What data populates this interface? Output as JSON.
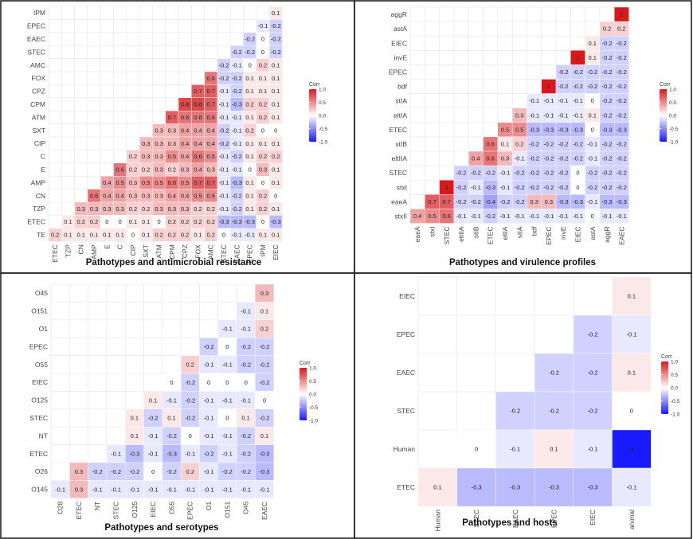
{
  "chart_data": [
    {
      "type": "heatmap",
      "title": "Pathotypes and antimicrobial resistance",
      "rows": [
        "IPM",
        "EPEC",
        "EAEC",
        "STEC",
        "AMC",
        "FOX",
        "CPZ",
        "CPM",
        "ATM",
        "SXT",
        "CIP",
        "C",
        "E",
        "AMP",
        "CN",
        "TZP",
        "ETEC",
        "TE"
      ],
      "cols": [
        "ETEC",
        "TZP",
        "CN",
        "AMP",
        "E",
        "C",
        "CIP",
        "SXT",
        "ATM",
        "CPM",
        "CPZ",
        "FOX",
        "AMC",
        "STEC",
        "EAEC",
        "EPEC",
        "IPM",
        "EIEC"
      ],
      "values": [
        [
          0.1
        ],
        [
          -0.1,
          -0.2
        ],
        [
          -0.2,
          0,
          -0.2
        ],
        [
          -0.2,
          -0.2,
          0,
          -0.2
        ],
        [
          -0.2,
          -0.1,
          0,
          0.2,
          0.1
        ],
        [
          0.6,
          -0.2,
          -0.2,
          0.1,
          0.1,
          0.1
        ],
        [
          0.7,
          0.7,
          -0.1,
          -0.2,
          0.1,
          0.1,
          0.1
        ],
        [
          0.8,
          0.8,
          0.7,
          -0.1,
          -0.3,
          0.2,
          0.2,
          0.1
        ],
        [
          0.7,
          0.6,
          0.6,
          0.6,
          -0.1,
          -0.1,
          0.1,
          0.2,
          0.1
        ],
        [
          0.3,
          0.3,
          0.4,
          0.4,
          0.4,
          -0.2,
          -0.1,
          0.2,
          0,
          0
        ],
        [
          0.3,
          0.3,
          0.3,
          0.4,
          0.4,
          0.4,
          -0.2,
          -0.1,
          0.1,
          0.1,
          0.1
        ],
        [
          0.2,
          0.3,
          0.3,
          0.5,
          0.4,
          0.6,
          0.5,
          -0.1,
          -0.2,
          0.1,
          0.2,
          0.2
        ],
        [
          0.6,
          0.2,
          0.2,
          0.3,
          0.2,
          0.3,
          0.4,
          0.3,
          -0.1,
          -0.1,
          0,
          0.3,
          0.1
        ],
        [
          0.4,
          0.5,
          0.3,
          0.5,
          0.5,
          0.6,
          0.5,
          0.7,
          0.7,
          -0.1,
          -0.3,
          0.1,
          0,
          0.1
        ],
        [
          0.6,
          0.4,
          0.4,
          0.3,
          0.3,
          0.3,
          0.4,
          0.4,
          0.5,
          0.5,
          -0.1,
          -0.2,
          0.1,
          0.2,
          0
        ],
        [
          0.3,
          0.3,
          0.3,
          0.3,
          0.2,
          0.2,
          0.3,
          0.3,
          0.3,
          0.2,
          0.2,
          -0.1,
          -0.2,
          0.1,
          0.2,
          0.1
        ],
        [
          0.1,
          0.2,
          0.2,
          0,
          0,
          0.1,
          0.1,
          0,
          0.2,
          0.2,
          0.2,
          0.2,
          -0.3,
          -0.3,
          -0.3,
          0,
          -0.3
        ],
        [
          0.2,
          0.1,
          0.1,
          0.1,
          0.1,
          0.1,
          0,
          0.1,
          0.2,
          0.2,
          0.2,
          0.1,
          0.2,
          0,
          -0.1,
          -0.1,
          0.1,
          0.1
        ]
      ],
      "legend": {
        "title": "Corr",
        "ticks": [
          "1.0",
          "0.5",
          "0.0",
          "-0.5",
          "-1.0"
        ],
        "range": [
          -1,
          1
        ]
      }
    },
    {
      "type": "heatmap",
      "title": "Pathotypes and virulence profiles",
      "rows": [
        "aggR",
        "astA",
        "EIEC",
        "invE",
        "EPEC",
        "bdf",
        "stIA",
        "eltIA",
        "ETEC",
        "stIB",
        "eltIIA",
        "STEC",
        "stxI",
        "eaeA",
        "stxII"
      ],
      "cols": [
        "eaeA",
        "stxI",
        "STEC",
        "eltIIA",
        "stIB",
        "ETEC",
        "eltIA",
        "stIA",
        "bdf",
        "EPEC",
        "invE",
        "EIEC",
        "astA",
        "aggR",
        "EAEC"
      ],
      "values": [
        [
          1
        ],
        [
          0.2,
          0.2
        ],
        [
          0.1,
          -0.2,
          -0.2
        ],
        [
          1,
          0.1,
          -0.2,
          -0.2
        ],
        [
          -0.2,
          -0.2,
          -0.2,
          -0.2,
          -0.2
        ],
        [
          1,
          -0.2,
          -0.2,
          -0.2,
          -0.2,
          -0.2
        ],
        [
          -0.1,
          -0.1,
          -0.1,
          -0.1,
          0,
          -0.2,
          -0.2
        ],
        [
          0.3,
          -0.1,
          -0.1,
          -0.1,
          -0.1,
          0.1,
          -0.2,
          -0.2
        ],
        [
          0.5,
          0.5,
          -0.3,
          -0.3,
          -0.3,
          -0.3,
          0,
          -0.3,
          -0.3
        ],
        [
          0.6,
          0.1,
          0.2,
          -0.2,
          -0.2,
          -0.2,
          -0.2,
          -0.1,
          -0.2,
          -0.2
        ],
        [
          0.4,
          0.6,
          0.3,
          -0.1,
          -0.2,
          -0.2,
          -0.2,
          -0.2,
          -0.1,
          -0.2,
          -0.2
        ],
        [
          -0.2,
          -0.2,
          -0.2,
          -0.1,
          -0.2,
          -0.2,
          -0.2,
          -0.2,
          0,
          -0.2,
          -0.2,
          -0.2
        ],
        [
          1,
          -0.2,
          -0.1,
          -0.3,
          -0.1,
          -0.2,
          -0.2,
          -0.2,
          -0.2,
          0,
          -0.2,
          -0.2,
          -0.2
        ],
        [
          0.7,
          0.7,
          -0.2,
          -0.2,
          -0.4,
          -0.2,
          -0.2,
          0.3,
          0.3,
          -0.3,
          -0.3,
          -0.1,
          -0.3,
          -0.3
        ],
        [
          0.4,
          0.5,
          0.6,
          -0.1,
          -0.1,
          -0.2,
          -0.1,
          -0.1,
          -0.1,
          -0.1,
          -0.1,
          -0.1,
          0,
          -0.1,
          -0.1
        ]
      ],
      "legend": {
        "title": "Corr",
        "ticks": [
          "1.0",
          "0.5",
          "0.0",
          "-0.5",
          "-1.0"
        ],
        "range": [
          -1,
          1
        ]
      }
    },
    {
      "type": "heatmap",
      "title": "Pathotypes and serotypes",
      "rows": [
        "O45",
        "O151",
        "O1",
        "EPEC",
        "O55",
        "EIEC",
        "O125",
        "STEC",
        "NT",
        "ETEC",
        "O26",
        "O145"
      ],
      "cols": [
        "O28",
        "ETEC",
        "NT",
        "STEC",
        "O125",
        "EIEC",
        "O55",
        "EPEC",
        "O1",
        "O151",
        "O45",
        "EAEC"
      ],
      "values": [
        [
          0.3
        ],
        [
          -0.1,
          0.1
        ],
        [
          -0.1,
          -0.1,
          0.2
        ],
        [
          -0.2,
          0,
          -0.2,
          -0.2
        ],
        [
          0.2,
          -0.1,
          -0.1,
          -0.2,
          -0.2
        ],
        [
          0,
          -0.2,
          0,
          0,
          0,
          -0.2
        ],
        [
          0.1,
          -0.1,
          -0.2,
          -0.1,
          -0.1,
          -0.1,
          0
        ],
        [
          0.1,
          -0.2,
          0.1,
          -0.2,
          -0.1,
          0,
          0.1,
          -0.2
        ],
        [
          0.1,
          -0.1,
          -0.2,
          0,
          -0.1,
          -0.1,
          -0.2,
          0.1
        ],
        [
          -0.1,
          -0.3,
          -0.1,
          -0.3,
          -0.1,
          -0.2,
          -0.1,
          -0.2,
          -0.3
        ],
        [
          0.3,
          -0.2,
          -0.2,
          -0.2,
          0,
          -0.2,
          0.2,
          -0.1,
          -0.2,
          -0.2,
          -0.3
        ],
        [
          -0.1,
          0.3,
          -0.1,
          -0.1,
          -0.1,
          -0.1,
          -0.1,
          -0.1,
          -0.1,
          -0.1,
          -0.1,
          -0.1
        ]
      ],
      "legend": {
        "title": "Corr",
        "ticks": [
          "1.0",
          "0.5",
          "0.0",
          "-0.5",
          "-1.0"
        ],
        "range": [
          -1,
          1
        ]
      }
    },
    {
      "type": "heatmap",
      "title": "Pathotypes and hosts",
      "rows": [
        "EIEC",
        "EPEC",
        "EAEC",
        "STEC",
        "Human",
        "ETEC"
      ],
      "cols": [
        "Human",
        "STEC",
        "EAEC",
        "EPEC",
        "EIEC",
        "animal"
      ],
      "values": [
        [
          0.1
        ],
        [
          -0.2,
          -0.1
        ],
        [
          -0.2,
          -0.2,
          0.1
        ],
        [
          -0.2,
          -0.2,
          -0.2,
          0
        ],
        [
          0,
          -0.1,
          0.1,
          -0.1,
          -1
        ],
        [
          0.1,
          -0.3,
          -0.3,
          -0.3,
          -0.3,
          -0.1
        ]
      ],
      "legend": {
        "title": "Corr",
        "ticks": [
          "1.0",
          "0.5",
          "0.0",
          "-0.5",
          "-1.0"
        ],
        "range": [
          -1,
          1
        ]
      }
    }
  ]
}
